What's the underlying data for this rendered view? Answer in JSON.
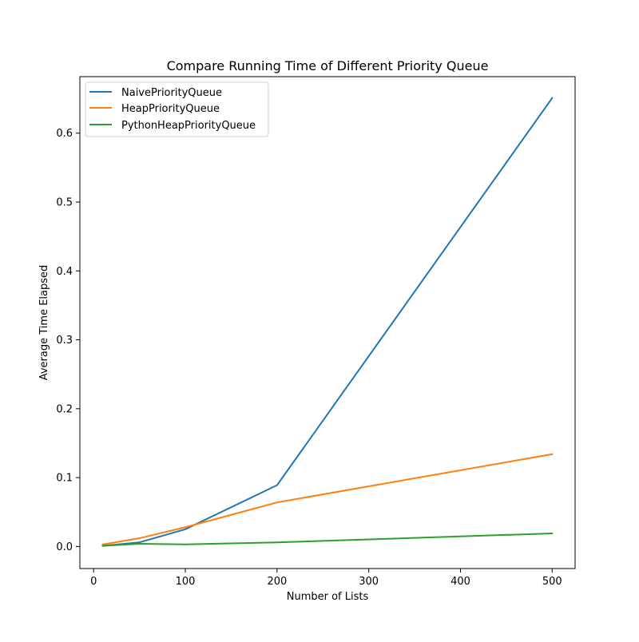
{
  "chart_data": {
    "type": "line",
    "title": "Compare Running Time of Different Priority Queue",
    "xlabel": "Number of Lists",
    "ylabel": "Average Time Elapsed",
    "xlim": [
      -15,
      525
    ],
    "ylim": [
      -0.032,
      0.682
    ],
    "xticks": [
      0,
      100,
      200,
      300,
      400,
      500
    ],
    "xtick_labels": [
      "0",
      "100",
      "200",
      "300",
      "400",
      "500"
    ],
    "yticks": [
      0.0,
      0.1,
      0.2,
      0.3,
      0.4,
      0.5,
      0.6
    ],
    "ytick_labels": [
      "0.0",
      "0.1",
      "0.2",
      "0.3",
      "0.4",
      "0.5",
      "0.6"
    ],
    "grid": false,
    "legend_position": "top-left",
    "x": [
      10,
      50,
      100,
      200,
      500
    ],
    "series": [
      {
        "name": "NaivePriorityQueue",
        "color": "#1f77b4",
        "values": [
          0.001,
          0.006,
          0.025,
          0.089,
          0.651
        ]
      },
      {
        "name": "HeapPriorityQueue",
        "color": "#ff7f0e",
        "values": [
          0.003,
          0.012,
          0.028,
          0.064,
          0.134
        ]
      },
      {
        "name": "PythonHeapPriorityQueue",
        "color": "#2ca02c",
        "values": [
          0.001,
          0.004,
          0.003,
          0.006,
          0.019
        ]
      }
    ]
  }
}
